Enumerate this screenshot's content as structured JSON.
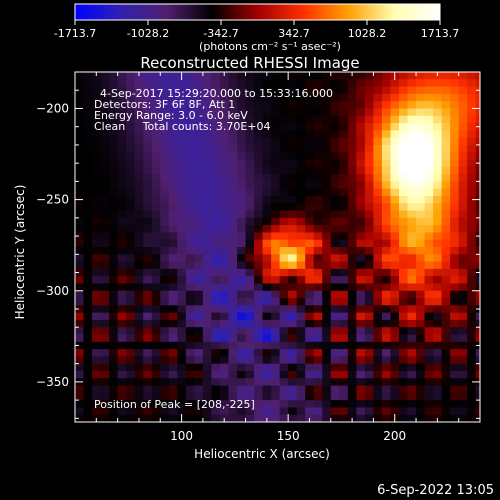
{
  "chart_data": {
    "type": "heatmap",
    "title": "Reconstructed RHESSI Image",
    "xlabel": "Heliocentric X (arcsec)",
    "ylabel": "Heliocentric Y (arcsec)",
    "xlim": [
      50,
      240
    ],
    "ylim": [
      -372,
      -180
    ],
    "x_ticks": [
      100,
      150,
      200
    ],
    "y_ticks": [
      -200,
      -250,
      -300,
      -350
    ],
    "colorbar": {
      "ticks": [
        "-1713.7",
        "-1028.2",
        "-342.7",
        "342.7",
        "1028.2",
        "1713.7"
      ],
      "tick_values": [
        -1713.7,
        -1028.2,
        -342.7,
        342.7,
        1028.2,
        1713.7
      ],
      "unit_label": "(photons cm⁻² s⁻¹ asec⁻²)",
      "stops": [
        "#0000ff",
        "#3020b0",
        "#502070",
        "#000000",
        "#a00000",
        "#ff3000",
        "#ffa000",
        "#ffffb0",
        "#ffffff"
      ]
    },
    "info_lines": [
      "4-Sep-2017 15:29:20.000 to 15:33:16.000",
      "Detectors: 3F 6F 8F, Att 1",
      "Energy Range: 3.0 - 6.0 keV",
      "Clean     Total counts: 3.70E+04"
    ],
    "peak_label": "Position of Peak = [208,-225]",
    "peak": [
      208,
      -225
    ],
    "sources": [
      {
        "x": 208,
        "y": -225,
        "sx": 14,
        "sy": 18,
        "amp": 1713.7
      },
      {
        "x": 212,
        "y": -265,
        "sx": 15,
        "sy": 30,
        "amp": 1250
      },
      {
        "x": 225,
        "y": -195,
        "sx": 22,
        "sy": 18,
        "amp": 900
      },
      {
        "x": 148,
        "y": -280,
        "sx": 12,
        "sy": 12,
        "amp": 1550
      }
    ]
  },
  "footer": {
    "timestamp": "6-Sep-2022 13:05"
  }
}
